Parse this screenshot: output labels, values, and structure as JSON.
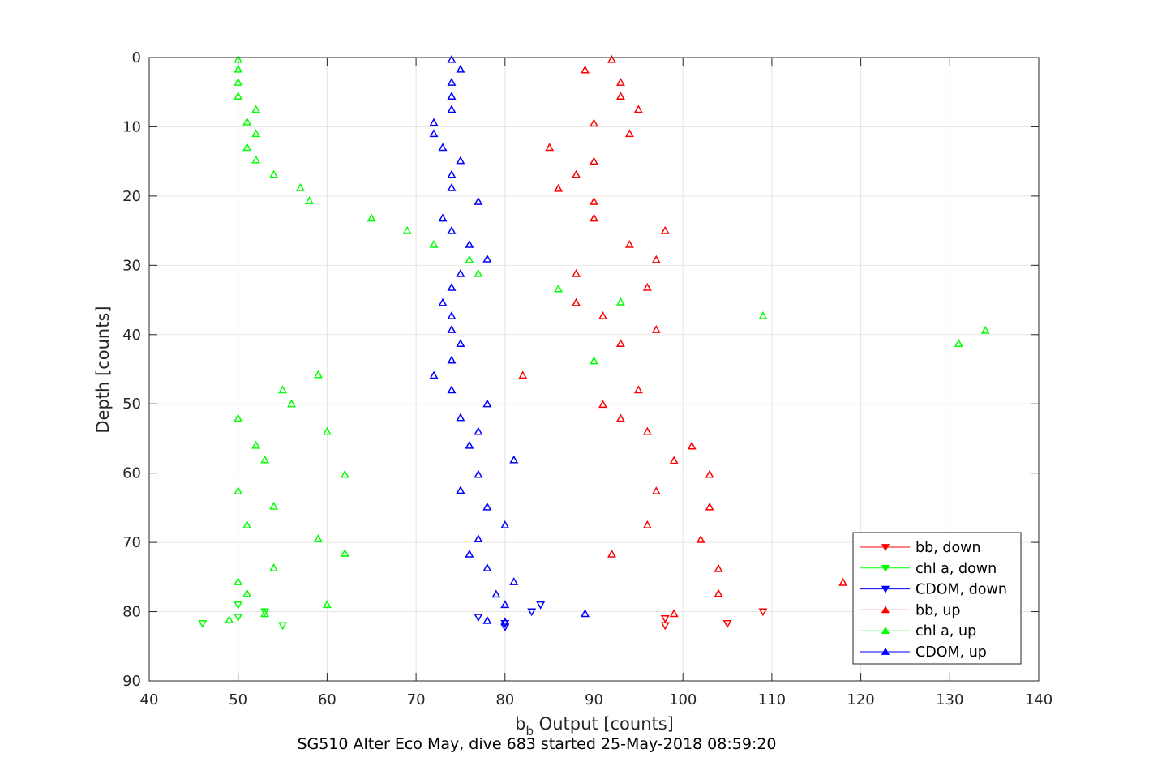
{
  "chart_data": {
    "type": "scatter",
    "title": "",
    "caption": "SG510 Alter Eco May, dive 683 started 25-May-2018 08:59:20",
    "xlabel_main": "b",
    "xlabel_sub": "b",
    "xlabel_rest": " Output [counts]",
    "ylabel": "Depth [counts]",
    "xlim": [
      40,
      140
    ],
    "ylim": [
      0,
      90
    ],
    "y_reversed": true,
    "grid": true,
    "legend_position": "bottom-right",
    "xticks": [
      "40",
      "50",
      "60",
      "70",
      "80",
      "90",
      "100",
      "110",
      "120",
      "130",
      "140"
    ],
    "yticks": [
      "0",
      "10",
      "20",
      "30",
      "40",
      "50",
      "60",
      "70",
      "80",
      "90"
    ],
    "colors": {
      "red": "#ff0000",
      "green": "#00ff00",
      "blue": "#0000ff",
      "axis": "#262626",
      "grid": "#e5e5e5"
    },
    "series": [
      {
        "name": "bb, down",
        "marker": "triangle-down",
        "color": "#ff0000",
        "points": [
          [
            98,
            81.0
          ],
          [
            98,
            82.0
          ],
          [
            105,
            81.7
          ],
          [
            109,
            80.0
          ]
        ]
      },
      {
        "name": "chl a, down",
        "marker": "triangle-down",
        "color": "#00ff00",
        "points": [
          [
            46,
            81.7
          ],
          [
            50,
            79.0
          ],
          [
            50,
            80.8
          ],
          [
            53,
            80.0
          ],
          [
            55,
            82.0
          ]
        ]
      },
      {
        "name": "CDOM, down",
        "marker": "triangle-down",
        "color": "#0000ff",
        "points": [
          [
            77,
            80.8
          ],
          [
            80,
            81.7
          ],
          [
            80,
            82.2
          ],
          [
            83,
            80.0
          ],
          [
            84,
            79.0
          ]
        ]
      },
      {
        "name": "bb, up",
        "marker": "triangle-up",
        "color": "#ff0000",
        "points": [
          [
            92,
            0.3
          ],
          [
            89,
            1.8
          ],
          [
            93,
            3.6
          ],
          [
            93,
            5.6
          ],
          [
            95,
            7.5
          ],
          [
            90,
            9.5
          ],
          [
            94,
            11.0
          ],
          [
            85,
            13.0
          ],
          [
            90,
            15.0
          ],
          [
            88,
            16.9
          ],
          [
            86,
            18.9
          ],
          [
            90,
            20.8
          ],
          [
            90,
            23.2
          ],
          [
            98,
            25.0
          ],
          [
            94,
            27.0
          ],
          [
            97,
            29.2
          ],
          [
            88,
            31.2
          ],
          [
            96,
            33.2
          ],
          [
            88,
            35.4
          ],
          [
            91,
            37.3
          ],
          [
            97,
            39.3
          ],
          [
            93,
            41.3
          ],
          [
            82,
            45.9
          ],
          [
            95,
            48.0
          ],
          [
            91,
            50.1
          ],
          [
            93,
            52.1
          ],
          [
            96,
            54.0
          ],
          [
            101,
            56.1
          ],
          [
            99,
            58.2
          ],
          [
            103,
            60.2
          ],
          [
            97,
            62.6
          ],
          [
            103,
            64.9
          ],
          [
            96,
            67.5
          ],
          [
            102,
            69.6
          ],
          [
            92,
            71.7
          ],
          [
            104,
            73.8
          ],
          [
            118,
            75.8
          ],
          [
            104,
            77.4
          ],
          [
            99,
            80.3
          ]
        ]
      },
      {
        "name": "chl a, up",
        "marker": "triangle-up",
        "color": "#00ff00",
        "points": [
          [
            50,
            0.3
          ],
          [
            50,
            1.7
          ],
          [
            50,
            3.6
          ],
          [
            50,
            5.6
          ],
          [
            52,
            7.5
          ],
          [
            51,
            9.3
          ],
          [
            52,
            11.0
          ],
          [
            51,
            13.0
          ],
          [
            52,
            14.8
          ],
          [
            54,
            16.9
          ],
          [
            57,
            18.8
          ],
          [
            58,
            20.7
          ],
          [
            65,
            23.2
          ],
          [
            69,
            25.0
          ],
          [
            72,
            27.0
          ],
          [
            76,
            29.2
          ],
          [
            77,
            31.2
          ],
          [
            86,
            33.4
          ],
          [
            93,
            35.3
          ],
          [
            109,
            37.3
          ],
          [
            134,
            39.4
          ],
          [
            131,
            41.3
          ],
          [
            90,
            43.8
          ],
          [
            59,
            45.8
          ],
          [
            55,
            48.0
          ],
          [
            56,
            50.0
          ],
          [
            50,
            52.1
          ],
          [
            60,
            54.0
          ],
          [
            52,
            56.0
          ],
          [
            53,
            58.1
          ],
          [
            62,
            60.2
          ],
          [
            50,
            62.6
          ],
          [
            54,
            64.8
          ],
          [
            51,
            67.5
          ],
          [
            59,
            69.5
          ],
          [
            62,
            71.6
          ],
          [
            54,
            73.7
          ],
          [
            50,
            75.7
          ],
          [
            51,
            77.4
          ],
          [
            60,
            79.0
          ],
          [
            53,
            80.3
          ],
          [
            49,
            81.2
          ]
        ]
      },
      {
        "name": "CDOM, up",
        "marker": "triangle-up",
        "color": "#0000ff",
        "points": [
          [
            74,
            0.3
          ],
          [
            75,
            1.7
          ],
          [
            74,
            3.6
          ],
          [
            74,
            5.6
          ],
          [
            74,
            7.5
          ],
          [
            72,
            9.4
          ],
          [
            72,
            11.0
          ],
          [
            73,
            13.0
          ],
          [
            75,
            14.9
          ],
          [
            74,
            16.9
          ],
          [
            74,
            18.8
          ],
          [
            77,
            20.8
          ],
          [
            73,
            23.2
          ],
          [
            74,
            25.0
          ],
          [
            76,
            27.0
          ],
          [
            78,
            29.1
          ],
          [
            75,
            31.2
          ],
          [
            74,
            33.2
          ],
          [
            73,
            35.4
          ],
          [
            74,
            37.3
          ],
          [
            74,
            39.3
          ],
          [
            75,
            41.3
          ],
          [
            74,
            43.7
          ],
          [
            72,
            45.9
          ],
          [
            74,
            48.0
          ],
          [
            78,
            50.0
          ],
          [
            75,
            52.0
          ],
          [
            77,
            54.0
          ],
          [
            76,
            56.0
          ],
          [
            81,
            58.1
          ],
          [
            77,
            60.2
          ],
          [
            75,
            62.5
          ],
          [
            78,
            64.9
          ],
          [
            80,
            67.5
          ],
          [
            77,
            69.5
          ],
          [
            76,
            71.7
          ],
          [
            78,
            73.7
          ],
          [
            81,
            75.7
          ],
          [
            79,
            77.5
          ],
          [
            80,
            79.0
          ],
          [
            89,
            80.3
          ],
          [
            78,
            81.3
          ],
          [
            80,
            81.5
          ]
        ]
      }
    ]
  }
}
